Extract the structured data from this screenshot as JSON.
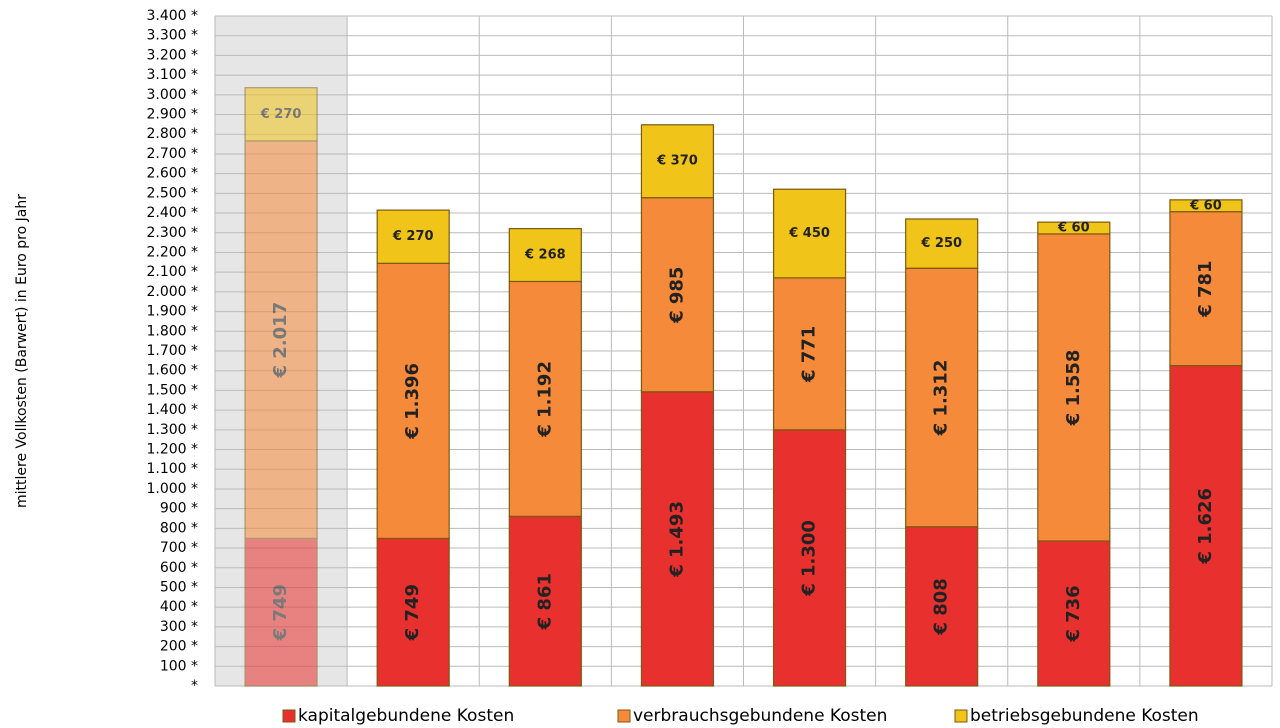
{
  "chart_data": {
    "type": "stacked_bar",
    "y_label": "mittlere Vollkosten (Barwert) in Euro pro Jahr",
    "categories": [
      null,
      null,
      null,
      null,
      null,
      null,
      null,
      null
    ],
    "series": [
      {
        "name": "kapitalgebundene Kosten",
        "color": "#e8312f",
        "values": [
          749,
          749,
          861,
          1493,
          1300,
          808,
          736,
          1626
        ],
        "value_labels": [
          "€ 749",
          "€ 749",
          "€ 861",
          "€ 1.493",
          "€ 1.300",
          "€ 808",
          "€ 736",
          "€ 1.626"
        ]
      },
      {
        "name": "verbrauchsgebundene Kosten",
        "color": "#f58a3a",
        "values": [
          2017,
          1396,
          1192,
          985,
          771,
          1312,
          1558,
          781
        ],
        "value_labels": [
          "€ 2.017",
          "€ 1.396",
          "€ 1.192",
          "€ 985",
          "€ 771",
          "€ 1.312",
          "€ 1.558",
          "€ 781"
        ]
      },
      {
        "name": "betriebsgebundene Kosten",
        "color": "#f0c419",
        "values": [
          270,
          270,
          268,
          370,
          450,
          250,
          60,
          60
        ],
        "value_labels": [
          "€ 270",
          "€ 270",
          "€ 268",
          "€ 370",
          "€ 450",
          "€ 250",
          "€ 60",
          "€ 60"
        ]
      }
    ],
    "ylim": [
      0,
      3400
    ],
    "yticks": [
      {
        "value": 0,
        "label": "*"
      },
      {
        "value": 100,
        "label": "100 *"
      },
      {
        "value": 200,
        "label": "200 *"
      },
      {
        "value": 300,
        "label": "300 *"
      },
      {
        "value": 400,
        "label": "400 *"
      },
      {
        "value": 500,
        "label": "500 *"
      },
      {
        "value": 600,
        "label": "600 *"
      },
      {
        "value": 700,
        "label": "700 *"
      },
      {
        "value": 800,
        "label": "800 *"
      },
      {
        "value": 900,
        "label": "900 *"
      },
      {
        "value": 1000,
        "label": "1.000 *"
      },
      {
        "value": 1100,
        "label": "1.100 *"
      },
      {
        "value": 1200,
        "label": "1.200 *"
      },
      {
        "value": 1300,
        "label": "1.300 *"
      },
      {
        "value": 1400,
        "label": "1.400 *"
      },
      {
        "value": 1500,
        "label": "1.500 *"
      },
      {
        "value": 1600,
        "label": "1.600 *"
      },
      {
        "value": 1700,
        "label": "1.700 *"
      },
      {
        "value": 1800,
        "label": "1.800 *"
      },
      {
        "value": 1900,
        "label": "1.900 *"
      },
      {
        "value": 2000,
        "label": "2.000 *"
      },
      {
        "value": 2100,
        "label": "2.100 *"
      },
      {
        "value": 2200,
        "label": "2.200 *"
      },
      {
        "value": 2300,
        "label": "2.300 *"
      },
      {
        "value": 2400,
        "label": "2.400 *"
      },
      {
        "value": 2500,
        "label": "2.500 *"
      },
      {
        "value": 2600,
        "label": "2.600 *"
      },
      {
        "value": 2700,
        "label": "2.700 *"
      },
      {
        "value": 2800,
        "label": "2.800 *"
      },
      {
        "value": 2900,
        "label": "2.900 *"
      },
      {
        "value": 3000,
        "label": "3.000 *"
      },
      {
        "value": 3100,
        "label": "3.100 *"
      },
      {
        "value": 3200,
        "label": "3.200 *"
      },
      {
        "value": 3300,
        "label": "3.300 *"
      },
      {
        "value": 3400,
        "label": "3.400 *"
      }
    ],
    "grid": true,
    "legend": "bottom"
  }
}
